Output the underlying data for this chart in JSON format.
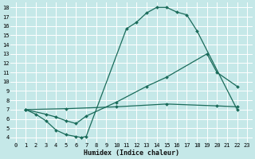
{
  "xlabel": "Humidex (Indice chaleur)",
  "bg_color": "#c5e8e8",
  "grid_color": "#ffffff",
  "line_color": "#1a6b5a",
  "xlim": [
    -0.5,
    23.5
  ],
  "ylim": [
    3.5,
    18.5
  ],
  "xticks": [
    0,
    1,
    2,
    3,
    4,
    5,
    6,
    7,
    8,
    9,
    10,
    11,
    12,
    13,
    14,
    15,
    16,
    17,
    18,
    19,
    20,
    21,
    22,
    23
  ],
  "yticks": [
    4,
    5,
    6,
    7,
    8,
    9,
    10,
    11,
    12,
    13,
    14,
    15,
    16,
    17,
    18
  ],
  "curve1_x": [
    1,
    2,
    3,
    4,
    5,
    6,
    6.5,
    7,
    11,
    12,
    13,
    14,
    15,
    16,
    17,
    18,
    22
  ],
  "curve1_y": [
    7,
    6.5,
    5.8,
    4.8,
    4.3,
    4.1,
    4.0,
    4.1,
    15.7,
    16.4,
    17.4,
    18.0,
    18.0,
    17.5,
    17.2,
    15.5,
    7.0
  ],
  "curve2_x": [
    1,
    3,
    4,
    5,
    6,
    7,
    10,
    13,
    15,
    19,
    20,
    22
  ],
  "curve2_y": [
    7,
    6.5,
    6.2,
    5.8,
    5.5,
    6.3,
    7.8,
    9.5,
    10.5,
    13.0,
    11.0,
    9.5
  ],
  "curve3_x": [
    1,
    5,
    10,
    15,
    20,
    22
  ],
  "curve3_y": [
    7.0,
    7.1,
    7.3,
    7.6,
    7.4,
    7.3
  ]
}
